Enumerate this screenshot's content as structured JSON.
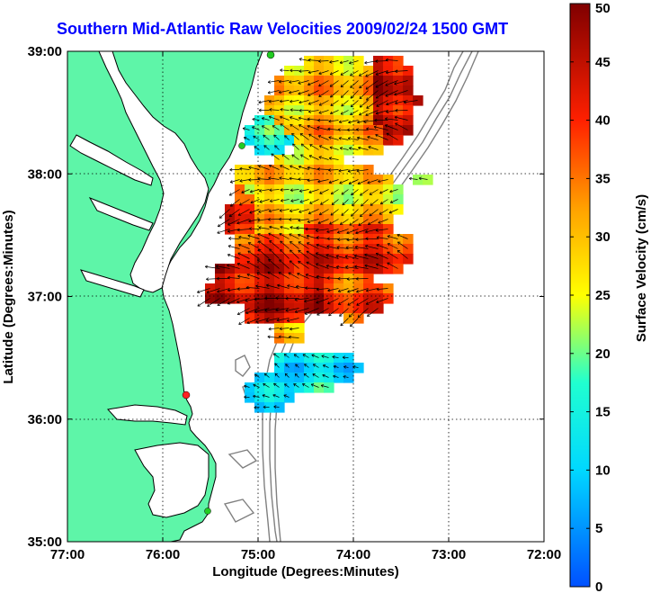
{
  "title": "Southern Mid-Atlantic Raw Velocities 2009/02/24 1500 GMT",
  "x_axis": {
    "label": "Longitude (Degrees:Minutes)",
    "ticks": [
      "77:00",
      "76:00",
      "75:00",
      "74:00",
      "73:00",
      "72:00"
    ]
  },
  "y_axis": {
    "label": "Latitude (Degrees:Minutes)",
    "ticks": [
      "39:00",
      "38:00",
      "37:00",
      "36:00",
      "35:00"
    ]
  },
  "colorbar": {
    "label": "Surface Velocity (cm/s)",
    "ticks": [
      "50",
      "45",
      "40",
      "35",
      "30",
      "25",
      "20",
      "15",
      "10",
      "5",
      "0"
    ],
    "range": [
      0,
      50
    ],
    "colormap": "jet"
  },
  "colors": {
    "land": "#5ef5a8",
    "coast": "#000000",
    "bathymetry": "#808080",
    "grid": "#000000",
    "site_active": "#22cc22",
    "site_inactive": "#ff2222"
  },
  "stations": [
    {
      "status": "active"
    },
    {
      "status": "active"
    },
    {
      "status": "inactive"
    },
    {
      "status": "active"
    }
  ],
  "chart_data": {
    "type": "heatmap",
    "title": "Southern Mid-Atlantic Raw Velocities 2009/02/24 1500 GMT",
    "xlabel": "Longitude (Degrees:Minutes)",
    "ylabel": "Latitude (Degrees:Minutes)",
    "xlim": [
      -77.0,
      -72.0
    ],
    "ylim": [
      35.0,
      39.0
    ],
    "color_label": "Surface Velocity (cm/s)",
    "clim": [
      0,
      50
    ],
    "grid": true
  }
}
